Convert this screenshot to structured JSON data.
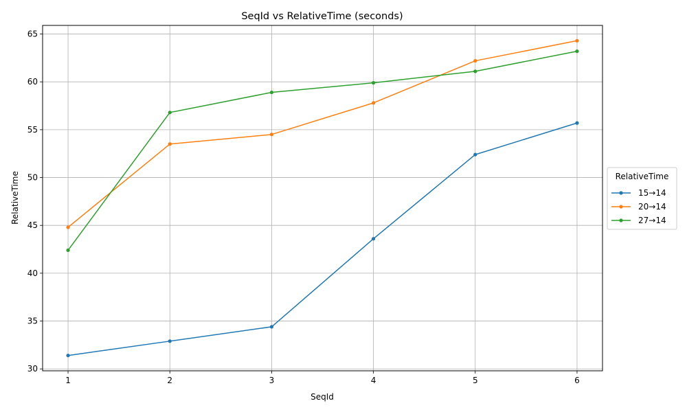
{
  "chart_data": {
    "type": "line",
    "title": "SeqId vs RelativeTime (seconds)",
    "xlabel": "SeqId",
    "ylabel": "RelativeTime",
    "x": [
      1,
      2,
      3,
      4,
      5,
      6
    ],
    "xlim": [
      0.75,
      6.25
    ],
    "ylim": [
      29.8,
      65.9
    ],
    "xticks": [
      1,
      2,
      3,
      4,
      5,
      6
    ],
    "yticks": [
      30,
      35,
      40,
      45,
      50,
      55,
      60,
      65
    ],
    "grid": true,
    "legend": {
      "title": "RelativeTime",
      "placement": "right-center, outside plot"
    },
    "series": [
      {
        "name": "15→14",
        "color": "#1f77b4",
        "values": [
          31.4,
          32.9,
          34.4,
          43.6,
          52.4,
          55.7
        ]
      },
      {
        "name": "20→14",
        "color": "#ff7f0e",
        "values": [
          44.8,
          53.5,
          54.5,
          57.8,
          62.2,
          64.3
        ]
      },
      {
        "name": "27→14",
        "color": "#2ca02c",
        "values": [
          42.4,
          56.8,
          58.9,
          59.9,
          61.1,
          63.2
        ]
      }
    ]
  }
}
